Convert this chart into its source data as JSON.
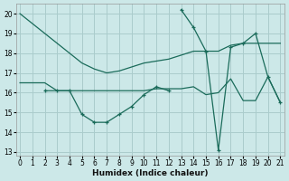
{
  "xlabel": "Humidex (Indice chaleur)",
  "background_color": "#cce8e8",
  "grid_color": "#aacccc",
  "line_color": "#1a6b5a",
  "xlim": [
    -0.3,
    21.3
  ],
  "ylim": [
    12.8,
    20.5
  ],
  "yticks": [
    13,
    14,
    15,
    16,
    17,
    18,
    19,
    20
  ],
  "xticks": [
    0,
    1,
    2,
    3,
    4,
    5,
    6,
    7,
    8,
    9,
    10,
    11,
    12,
    13,
    14,
    15,
    16,
    17,
    18,
    19,
    20,
    21
  ],
  "series": [
    {
      "x": [
        0,
        1,
        2,
        3,
        4,
        5,
        6,
        7,
        8,
        9,
        10,
        11,
        12,
        13,
        14,
        15,
        16,
        17,
        18,
        19,
        20,
        21
      ],
      "y": [
        20.0,
        19.5,
        19.0,
        18.5,
        18.0,
        17.5,
        17.2,
        17.0,
        17.1,
        17.3,
        17.5,
        17.6,
        17.7,
        17.9,
        18.1,
        18.1,
        18.1,
        18.4,
        18.5,
        18.5,
        18.5,
        18.5
      ]
    },
    {
      "x": [
        0,
        1,
        2,
        3,
        4,
        5,
        6,
        7,
        8,
        9,
        10,
        11,
        12,
        13,
        14,
        15,
        16,
        17,
        18,
        19,
        20,
        21
      ],
      "y": [
        16.5,
        16.5,
        16.5,
        16.1,
        16.1,
        16.1,
        16.1,
        16.1,
        16.1,
        16.1,
        16.1,
        16.2,
        16.2,
        16.2,
        16.3,
        15.9,
        16.0,
        16.7,
        15.6,
        15.6,
        16.8,
        15.5
      ]
    },
    {
      "x": [
        2,
        3,
        4,
        5,
        6,
        7,
        8,
        9,
        10,
        11,
        12
      ],
      "y": [
        16.1,
        16.1,
        16.1,
        14.9,
        14.5,
        14.5,
        14.9,
        15.3,
        15.9,
        16.3,
        16.1
      ]
    },
    {
      "x": [
        13,
        14,
        15,
        16,
        17,
        18,
        19,
        20,
        21
      ],
      "y": [
        20.2,
        19.3,
        18.1,
        13.1,
        18.3,
        18.5,
        19.0,
        16.8,
        15.5
      ]
    }
  ]
}
